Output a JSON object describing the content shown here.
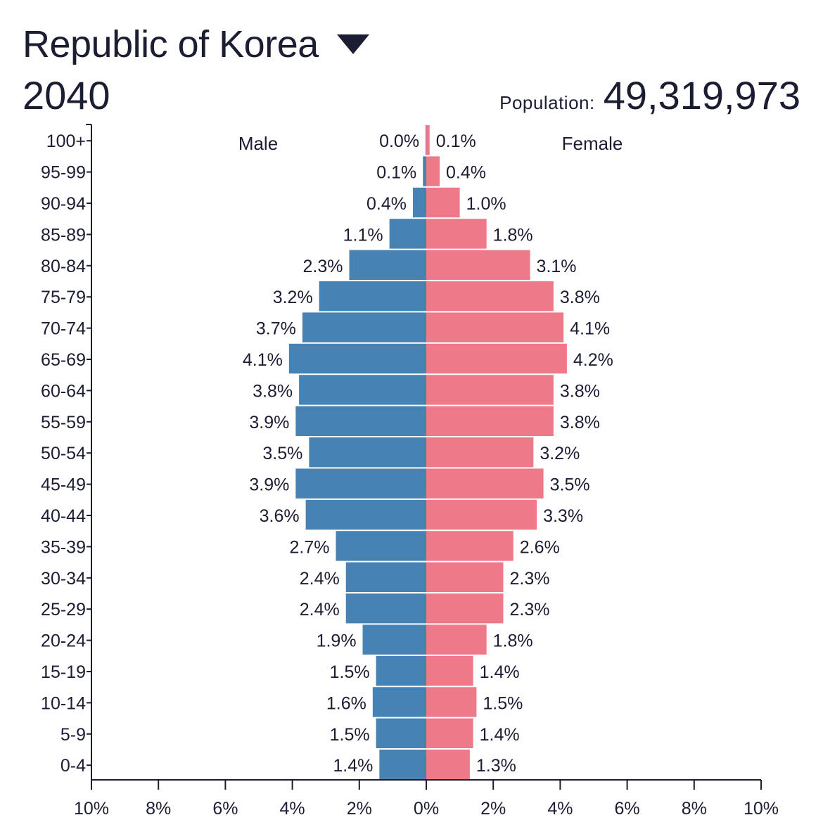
{
  "header": {
    "country": "Republic of Korea",
    "year": "2040",
    "population_label": "Population:",
    "population_value": "49,319,973"
  },
  "chart_data": {
    "type": "bar",
    "orientation": "horizontal-diverging",
    "categories": [
      "100+",
      "95-99",
      "90-94",
      "85-89",
      "80-84",
      "75-79",
      "70-74",
      "65-69",
      "60-64",
      "55-59",
      "50-54",
      "45-49",
      "40-44",
      "35-39",
      "30-34",
      "25-29",
      "20-24",
      "15-19",
      "10-14",
      "5-9",
      "0-4"
    ],
    "series": [
      {
        "name": "Male",
        "color": "#4682b4",
        "values": [
          0.02,
          0.1,
          0.4,
          1.1,
          2.3,
          3.2,
          3.7,
          4.1,
          3.8,
          3.9,
          3.5,
          3.9,
          3.6,
          2.7,
          2.4,
          2.4,
          1.9,
          1.5,
          1.6,
          1.5,
          1.4
        ],
        "labels": [
          "0.0%",
          "0.1%",
          "0.4%",
          "1.1%",
          "2.3%",
          "3.2%",
          "3.7%",
          "4.1%",
          "3.8%",
          "3.9%",
          "3.5%",
          "3.9%",
          "3.6%",
          "2.7%",
          "2.4%",
          "2.4%",
          "1.9%",
          "1.5%",
          "1.6%",
          "1.5%",
          "1.4%"
        ]
      },
      {
        "name": "Female",
        "color": "#ee7989",
        "values": [
          0.1,
          0.4,
          1.0,
          1.8,
          3.1,
          3.8,
          4.1,
          4.2,
          3.8,
          3.8,
          3.2,
          3.5,
          3.3,
          2.6,
          2.3,
          2.3,
          1.8,
          1.4,
          1.5,
          1.4,
          1.3
        ],
        "labels": [
          "0.1%",
          "0.4%",
          "1.0%",
          "1.8%",
          "3.1%",
          "3.8%",
          "4.1%",
          "4.2%",
          "3.8%",
          "3.8%",
          "3.2%",
          "3.5%",
          "3.3%",
          "2.6%",
          "2.3%",
          "2.3%",
          "1.8%",
          "1.4%",
          "1.5%",
          "1.4%",
          "1.3%"
        ]
      }
    ],
    "x_ticks": [
      -10,
      -8,
      -6,
      -4,
      -2,
      0,
      2,
      4,
      6,
      8,
      10
    ],
    "x_tick_labels": [
      "10%",
      "8%",
      "6%",
      "4%",
      "2%",
      "0%",
      "2%",
      "4%",
      "6%",
      "8%",
      "10%"
    ],
    "xlim": [
      -10,
      10
    ],
    "grid": false,
    "legend": "top, inside plot"
  }
}
